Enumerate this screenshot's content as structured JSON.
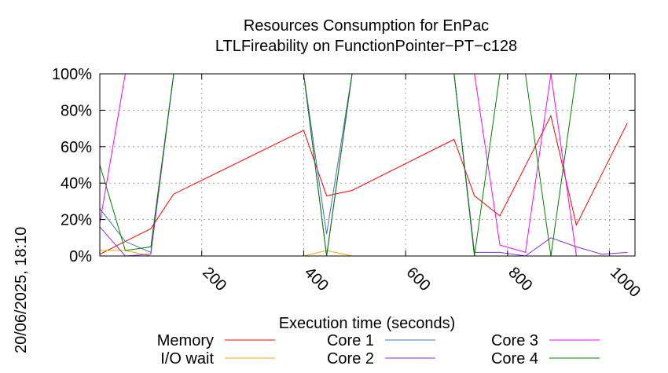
{
  "chart_data": {
    "type": "line",
    "title_line1": "Resources Consumption for EnPac",
    "title_line2": "LTLFireability on FunctionPointer−PT−c128",
    "xlabel": "Execution time (seconds)",
    "timestamp": "20/06/2025, 18:10",
    "xlim": [
      0,
      1050
    ],
    "ylim": [
      0,
      100
    ],
    "x_ticks": [
      200,
      400,
      600,
      800,
      1000
    ],
    "x_tick_labels": [
      "200",
      "400",
      "600",
      "800",
      "1000"
    ],
    "y_ticks": [
      0,
      20,
      40,
      60,
      80,
      100
    ],
    "y_tick_labels": [
      "0%",
      "20%",
      "40%",
      "60%",
      "80%",
      "100%"
    ],
    "legend_columns": 3,
    "series": [
      {
        "name": "Memory",
        "color": "#ff0000",
        "points": [
          [
            0,
            1
          ],
          [
            50,
            8
          ],
          [
            100,
            15
          ],
          [
            145,
            34
          ],
          [
            400,
            69
          ],
          [
            445,
            33
          ],
          [
            495,
            36
          ],
          [
            695,
            64
          ],
          [
            735,
            33
          ],
          [
            785,
            22
          ],
          [
            885,
            77
          ],
          [
            935,
            17
          ],
          [
            1035,
            73
          ]
        ]
      },
      {
        "name": "I/O wait",
        "color": "#ffa500",
        "points": [
          [
            0,
            3
          ],
          [
            50,
            3
          ],
          [
            100,
            0
          ],
          [
            145,
            0
          ],
          [
            400,
            0
          ],
          [
            445,
            3
          ],
          [
            495,
            0
          ],
          [
            695,
            0
          ],
          [
            735,
            0
          ],
          [
            785,
            0
          ],
          [
            835,
            0
          ],
          [
            885,
            0
          ],
          [
            935,
            0
          ],
          [
            985,
            0
          ],
          [
            1035,
            0
          ]
        ]
      },
      {
        "name": "Core 1",
        "color": "#4070b0",
        "points": [
          [
            0,
            26
          ],
          [
            50,
            8
          ],
          [
            100,
            2
          ],
          [
            145,
            100
          ],
          [
            400,
            100
          ],
          [
            445,
            12
          ],
          [
            495,
            100
          ],
          [
            695,
            100
          ],
          [
            735,
            0
          ],
          [
            785,
            0
          ],
          [
            835,
            0
          ],
          [
            885,
            0
          ],
          [
            935,
            0
          ],
          [
            985,
            0
          ],
          [
            1035,
            0
          ]
        ]
      },
      {
        "name": "Core 2",
        "color": "#8a2be2",
        "points": [
          [
            0,
            16
          ],
          [
            50,
            0
          ],
          [
            100,
            1
          ],
          [
            145,
            100
          ],
          [
            400,
            100
          ],
          [
            445,
            0
          ],
          [
            495,
            100
          ],
          [
            695,
            100
          ],
          [
            735,
            2
          ],
          [
            785,
            2
          ],
          [
            835,
            0
          ],
          [
            885,
            10
          ],
          [
            935,
            5
          ],
          [
            985,
            1
          ],
          [
            1035,
            2
          ]
        ]
      },
      {
        "name": "Core 3",
        "color": "#ff00ff",
        "points": [
          [
            0,
            18
          ],
          [
            50,
            100
          ],
          [
            100,
            100
          ],
          [
            145,
            100
          ],
          [
            400,
            100
          ],
          [
            445,
            100
          ],
          [
            495,
            100
          ],
          [
            695,
            100
          ],
          [
            735,
            100
          ],
          [
            785,
            6
          ],
          [
            835,
            2
          ],
          [
            885,
            100
          ],
          [
            935,
            0
          ],
          [
            985,
            0
          ],
          [
            1035,
            0
          ]
        ]
      },
      {
        "name": "Core 4",
        "color": "#008000",
        "points": [
          [
            0,
            50
          ],
          [
            50,
            3
          ],
          [
            100,
            5
          ],
          [
            145,
            100
          ],
          [
            400,
            100
          ],
          [
            445,
            0
          ],
          [
            495,
            100
          ],
          [
            695,
            100
          ],
          [
            735,
            0
          ],
          [
            785,
            100
          ],
          [
            835,
            100
          ],
          [
            885,
            0
          ],
          [
            935,
            100
          ],
          [
            985,
            100
          ],
          [
            1035,
            100
          ]
        ]
      }
    ]
  }
}
